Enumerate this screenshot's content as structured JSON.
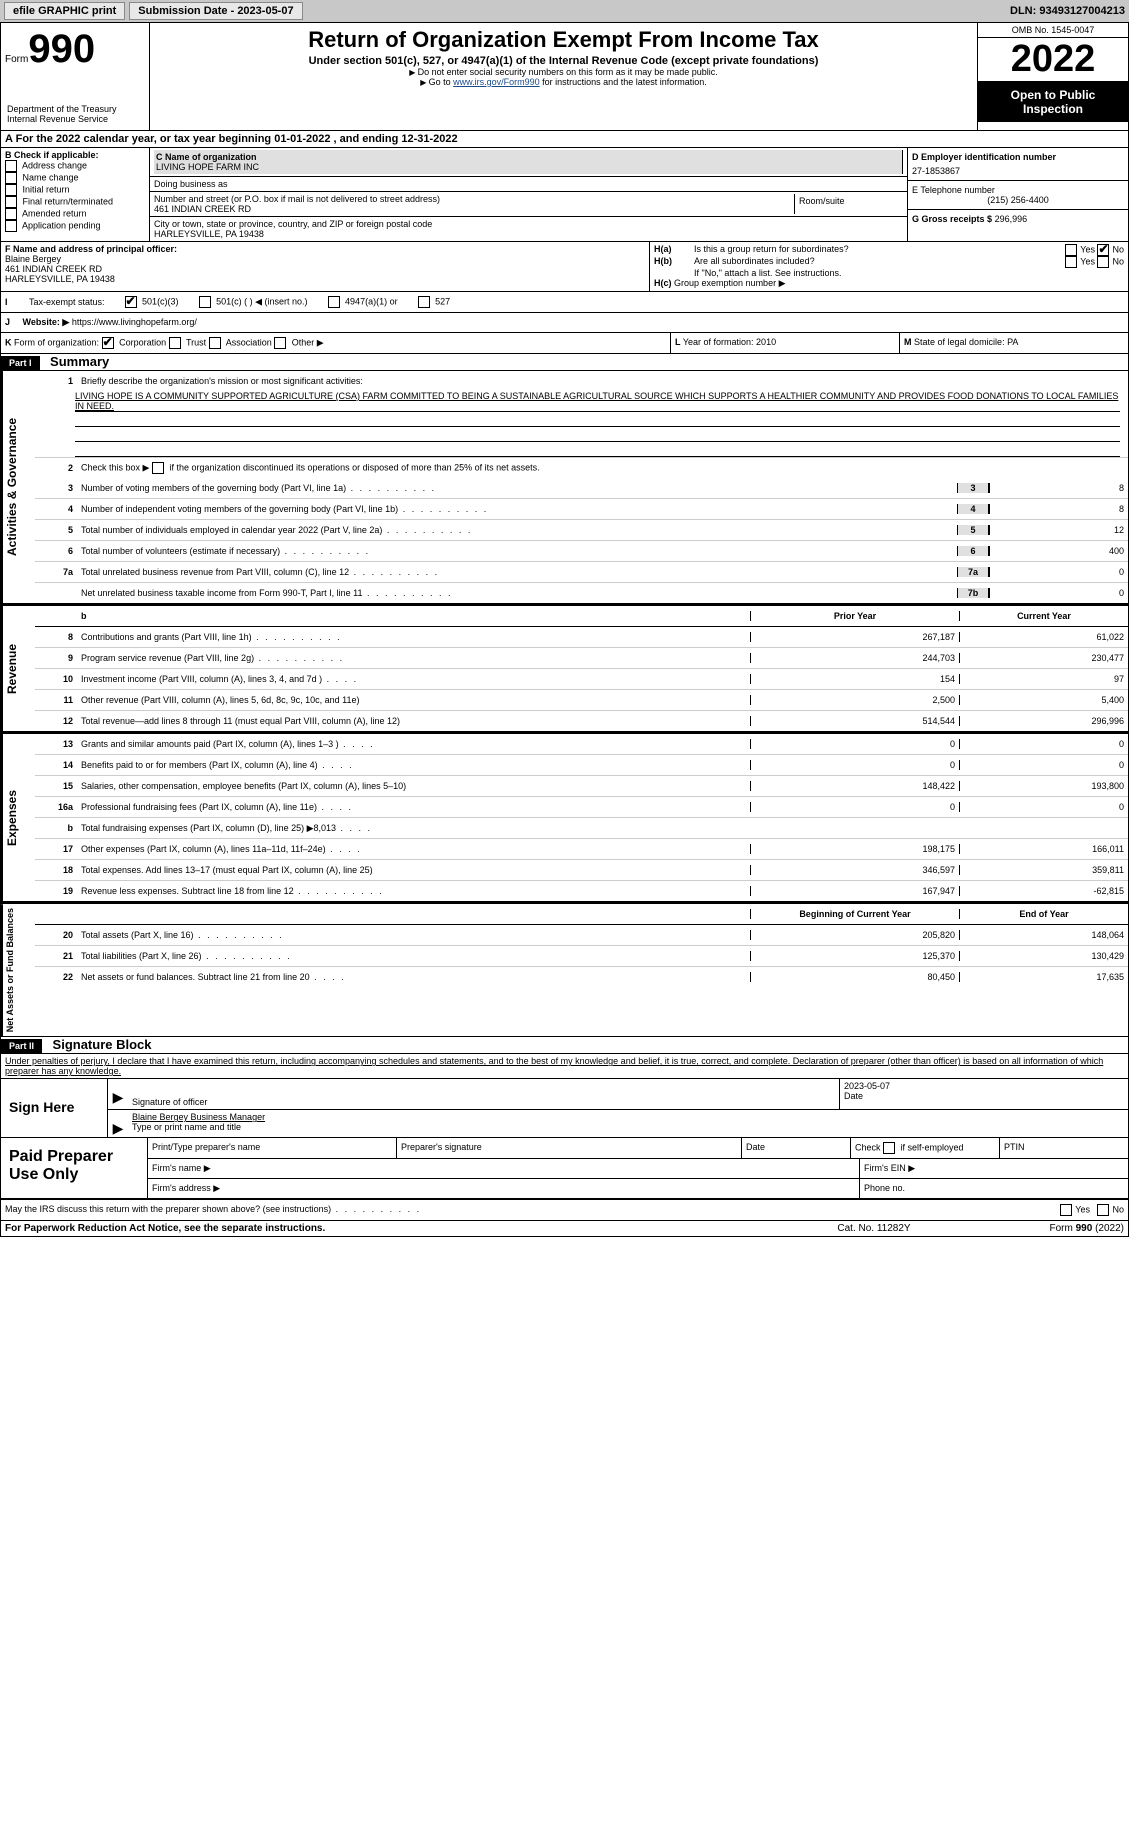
{
  "topbar": {
    "efile": "efile GRAPHIC print",
    "submission": "Submission Date - 2023-05-07",
    "dln": "DLN: 93493127004213"
  },
  "header": {
    "form_label": "Form",
    "form_num": "990",
    "title": "Return of Organization Exempt From Income Tax",
    "subtitle": "Under section 501(c), 527, or 4947(a)(1) of the Internal Revenue Code (except private foundations)",
    "note1": "Do not enter social security numbers on this form as it may be made public.",
    "note2_pre": "Go to ",
    "note2_link": "www.irs.gov/Form990",
    "note2_post": " for instructions and the latest information.",
    "dept": "Department of the Treasury\nInternal Revenue Service",
    "omb": "OMB No. 1545-0047",
    "year": "2022",
    "inspection": "Open to Public Inspection"
  },
  "period": "For the 2022 calendar year, or tax year beginning 01-01-2022    , and ending 12-31-2022",
  "section_b": {
    "label": "B Check if applicable:",
    "opts": [
      "Address change",
      "Name change",
      "Initial return",
      "Final return/terminated",
      "Amended return",
      "Application pending"
    ]
  },
  "section_c": {
    "name_label": "C Name of organization",
    "name": "LIVING HOPE FARM INC",
    "dba": "Doing business as",
    "addr_label": "Number and street (or P.O. box if mail is not delivered to street address)",
    "room": "Room/suite",
    "addr": "461 INDIAN CREEK RD",
    "city_label": "City or town, state or province, country, and ZIP or foreign postal code",
    "city": "HARLEYSVILLE, PA  19438"
  },
  "section_d": {
    "ein_label": "D Employer identification number",
    "ein": "27-1853867",
    "phone_label": "E Telephone number",
    "phone": "(215) 256-4400",
    "gross_label": "G Gross receipts $",
    "gross": "296,996"
  },
  "section_f": {
    "label": "F Name and address of principal officer:",
    "name": "Blaine Bergey",
    "addr1": "461 INDIAN CREEK RD",
    "addr2": "HARLEYSVILLE, PA  19438"
  },
  "section_h": {
    "a": "Is this a group return for subordinates?",
    "b": "Are all subordinates included?",
    "b_note": "If \"No,\" attach a list. See instructions.",
    "c": "Group exemption number ▶"
  },
  "tax_status": {
    "label": "Tax-exempt status:",
    "opts": [
      "501(c)(3)",
      "501(c) (  ) ◀ (insert no.)",
      "4947(a)(1) or",
      "527"
    ]
  },
  "website": {
    "label": "Website: ▶",
    "url": "https://www.livinghopefarm.org/"
  },
  "k": "Form of organization:",
  "k_opts": [
    "Corporation",
    "Trust",
    "Association",
    "Other ▶"
  ],
  "l": "Year of formation: 2010",
  "m": "State of legal domicile: PA",
  "part1": {
    "title": "Part I",
    "name": "Summary",
    "q1": "Briefly describe the organization's mission or most significant activities:",
    "mission": "LIVING HOPE IS A COMMUNITY SUPPORTED AGRICULTURE (CSA) FARM COMMITTED TO BEING A SUSTAINABLE AGRICULTURAL SOURCE WHICH SUPPORTS A HEALTHIER COMMUNITY AND PROVIDES FOOD DONATIONS TO LOCAL FAMILIES IN NEED.",
    "q2": "Check this box ▶        if the organization discontinued its operations or disposed of more than 25% of its net assets.",
    "lines_gov": [
      {
        "n": "3",
        "d": "Number of voting members of the governing body (Part VI, line 1a)",
        "box": "3",
        "v": "8"
      },
      {
        "n": "4",
        "d": "Number of independent voting members of the governing body (Part VI, line 1b)",
        "box": "4",
        "v": "8"
      },
      {
        "n": "5",
        "d": "Total number of individuals employed in calendar year 2022 (Part V, line 2a)",
        "box": "5",
        "v": "12"
      },
      {
        "n": "6",
        "d": "Total number of volunteers (estimate if necessary)",
        "box": "6",
        "v": "400"
      },
      {
        "n": "7a",
        "d": "Total unrelated business revenue from Part VIII, column (C), line 12",
        "box": "7a",
        "v": "0"
      },
      {
        "n": "",
        "d": "Net unrelated business taxable income from Form 990-T, Part I, line 11",
        "box": "7b",
        "v": "0"
      }
    ],
    "prior_label": "Prior Year",
    "curr_label": "Current Year",
    "rev": [
      {
        "n": "8",
        "d": "Contributions and grants (Part VIII, line 1h)",
        "p": "267,187",
        "c": "61,022"
      },
      {
        "n": "9",
        "d": "Program service revenue (Part VIII, line 2g)",
        "p": "244,703",
        "c": "230,477"
      },
      {
        "n": "10",
        "d": "Investment income (Part VIII, column (A), lines 3, 4, and 7d )",
        "p": "154",
        "c": "97"
      },
      {
        "n": "11",
        "d": "Other revenue (Part VIII, column (A), lines 5, 6d, 8c, 9c, 10c, and 11e)",
        "p": "2,500",
        "c": "5,400"
      },
      {
        "n": "12",
        "d": "Total revenue—add lines 8 through 11 (must equal Part VIII, column (A), line 12)",
        "p": "514,544",
        "c": "296,996"
      }
    ],
    "exp": [
      {
        "n": "13",
        "d": "Grants and similar amounts paid (Part IX, column (A), lines 1–3 )",
        "p": "0",
        "c": "0"
      },
      {
        "n": "14",
        "d": "Benefits paid to or for members (Part IX, column (A), line 4)",
        "p": "0",
        "c": "0"
      },
      {
        "n": "15",
        "d": "Salaries, other compensation, employee benefits (Part IX, column (A), lines 5–10)",
        "p": "148,422",
        "c": "193,800"
      },
      {
        "n": "16a",
        "d": "Professional fundraising fees (Part IX, column (A), line 11e)",
        "p": "0",
        "c": "0"
      },
      {
        "n": "b",
        "d": "Total fundraising expenses (Part IX, column (D), line 25) ▶8,013",
        "p": "",
        "c": "",
        "shaded": true
      },
      {
        "n": "17",
        "d": "Other expenses (Part IX, column (A), lines 11a–11d, 11f–24e)",
        "p": "198,175",
        "c": "166,011"
      },
      {
        "n": "18",
        "d": "Total expenses. Add lines 13–17 (must equal Part IX, column (A), line 25)",
        "p": "346,597",
        "c": "359,811"
      },
      {
        "n": "19",
        "d": "Revenue less expenses. Subtract line 18 from line 12",
        "p": "167,947",
        "c": "-62,815"
      }
    ],
    "begin_label": "Beginning of Current Year",
    "end_label": "End of Year",
    "net": [
      {
        "n": "20",
        "d": "Total assets (Part X, line 16)",
        "p": "205,820",
        "c": "148,064"
      },
      {
        "n": "21",
        "d": "Total liabilities (Part X, line 26)",
        "p": "125,370",
        "c": "130,429"
      },
      {
        "n": "22",
        "d": "Net assets or fund balances. Subtract line 21 from line 20",
        "p": "80,450",
        "c": "17,635"
      }
    ]
  },
  "part2": {
    "title": "Part II",
    "name": "Signature Block",
    "decl": "Under penalties of perjury, I declare that I have examined this return, including accompanying schedules and statements, and to the best of my knowledge and belief, it is true, correct, and complete. Declaration of preparer (other than officer) is based on all information of which preparer has any knowledge.",
    "sign_here": "Sign Here",
    "sig_officer": "Signature of officer",
    "date_label": "Date",
    "sig_date": "2023-05-07",
    "type_name": "Blaine Bergey  Business Manager",
    "type_label": "Type or print name and title",
    "paid": "Paid Preparer Use Only",
    "prep_name": "Print/Type preparer's name",
    "prep_sig": "Preparer's signature",
    "prep_date": "Date",
    "check_if": "Check          if self-employed",
    "ptin": "PTIN",
    "firm_name": "Firm's name    ▶",
    "firm_ein": "Firm's EIN ▶",
    "firm_addr": "Firm's address ▶",
    "phone": "Phone no.",
    "discuss": "May the IRS discuss this return with the preparer shown above? (see instructions)"
  },
  "footer": {
    "left": "For Paperwork Reduction Act Notice, see the separate instructions.",
    "mid": "Cat. No. 11282Y",
    "right": "Form 990 (2022)"
  },
  "colors": {
    "topbar_bg": "#c8c8c8",
    "black_bg": "#000000",
    "link": "#1a4b8c"
  }
}
